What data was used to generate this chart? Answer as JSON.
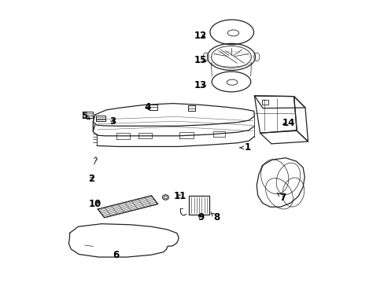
{
  "background_color": "#ffffff",
  "line_color": "#222222",
  "text_color": "#000000",
  "fig_width": 4.89,
  "fig_height": 3.6,
  "dpi": 100,
  "labels": {
    "1": [
      0.695,
      0.478,
      0.66,
      0.478
    ],
    "2": [
      0.142,
      0.368,
      0.158,
      0.38
    ],
    "3": [
      0.218,
      0.572,
      0.228,
      0.56
    ],
    "4": [
      0.34,
      0.62,
      0.355,
      0.608
    ],
    "5": [
      0.118,
      0.59,
      0.14,
      0.578
    ],
    "6": [
      0.23,
      0.098,
      0.218,
      0.115
    ],
    "7": [
      0.82,
      0.302,
      0.8,
      0.318
    ],
    "8": [
      0.585,
      0.23,
      0.565,
      0.248
    ],
    "9": [
      0.53,
      0.23,
      0.515,
      0.248
    ],
    "10": [
      0.155,
      0.278,
      0.178,
      0.292
    ],
    "11": [
      0.455,
      0.305,
      0.438,
      0.318
    ],
    "12": [
      0.528,
      0.875,
      0.555,
      0.87
    ],
    "13": [
      0.528,
      0.7,
      0.558,
      0.695
    ],
    "14": [
      0.84,
      0.565,
      0.81,
      0.558
    ],
    "15": [
      0.528,
      0.788,
      0.558,
      0.782
    ]
  }
}
